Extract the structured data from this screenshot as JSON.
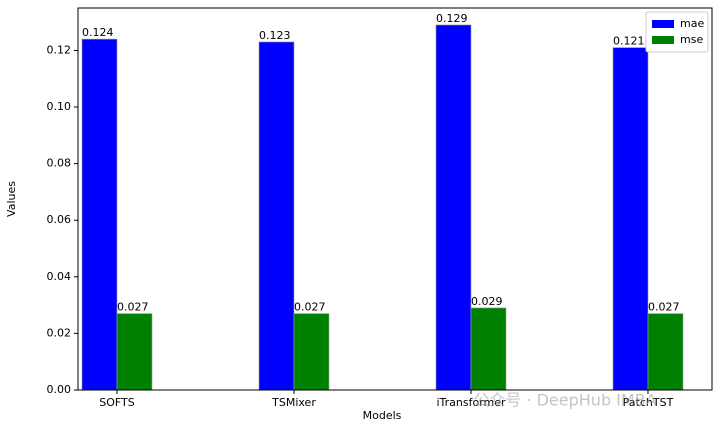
{
  "chart_data": {
    "type": "bar",
    "xlabel": "Models",
    "ylabel": "Values",
    "categories": [
      "SOFTS",
      "TSMixer",
      "iTransformer",
      "PatchTST"
    ],
    "series": [
      {
        "name": "mae",
        "color": "#0000ff",
        "values": [
          0.124,
          0.123,
          0.129,
          0.121
        ]
      },
      {
        "name": "mse",
        "color": "#008000",
        "values": [
          0.027,
          0.027,
          0.029,
          0.027
        ]
      }
    ],
    "ylim": [
      0,
      0.135
    ],
    "yticks": [
      {
        "value": 0,
        "label": "0.00"
      },
      {
        "value": 0.02,
        "label": "0.02"
      },
      {
        "value": 0.04,
        "label": "0.04"
      },
      {
        "value": 0.06,
        "label": "0.06"
      },
      {
        "value": 0.08,
        "label": "0.08"
      },
      {
        "value": 0.1,
        "label": "0.10"
      },
      {
        "value": 0.12,
        "label": "0.12"
      }
    ],
    "legend": "upper right",
    "watermark": "公众号 · DeepHub IMBA"
  }
}
